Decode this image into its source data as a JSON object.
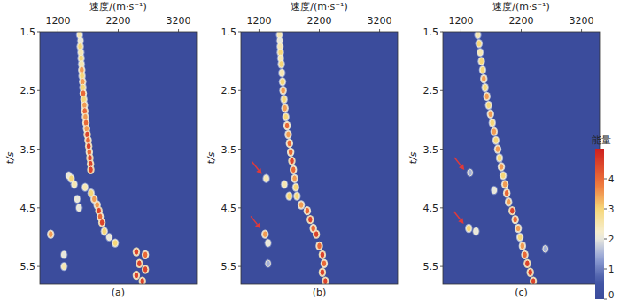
{
  "chart_data": [
    {
      "type": "heatmap",
      "x_label": "速度/(m·s⁻¹)",
      "y_label": "t/s",
      "panel_label": "(a)",
      "xlim": [
        900,
        3500
      ],
      "xticks": [
        1200,
        2200,
        3200
      ],
      "ylim": [
        1.5,
        5.8
      ],
      "yticks": [
        1.5,
        2.5,
        3.5,
        4.5,
        5.5
      ],
      "points": {
        "x": [
          1560,
          1575,
          1570,
          1580,
          1585,
          1590,
          1595,
          1600,
          1610,
          1615,
          1620,
          1630,
          1640,
          1645,
          1655,
          1665,
          1675,
          1685,
          1700,
          1710,
          1720,
          1730,
          1740,
          1745,
          1380,
          1420,
          1470,
          1650,
          1750,
          1800,
          1850,
          1880,
          1900,
          1930,
          1970,
          1550,
          1520,
          1080,
          2050,
          2150,
          2500,
          2650,
          2550,
          2650,
          2500,
          2600,
          1300,
          1300
        ],
        "y": [
          1.55,
          1.65,
          1.75,
          1.85,
          1.95,
          2.05,
          2.15,
          2.25,
          2.35,
          2.45,
          2.55,
          2.65,
          2.75,
          2.85,
          2.95,
          3.05,
          3.15,
          3.25,
          3.35,
          3.45,
          3.55,
          3.65,
          3.75,
          3.85,
          3.95,
          4.0,
          4.1,
          4.15,
          4.25,
          4.35,
          4.45,
          4.55,
          4.65,
          4.75,
          4.9,
          4.5,
          4.35,
          4.95,
          5.0,
          5.1,
          5.25,
          5.3,
          5.45,
          5.55,
          5.65,
          5.75,
          5.5,
          5.3
        ],
        "energy": [
          2.5,
          2,
          3,
          2.5,
          3,
          2.5,
          3.5,
          3,
          3.5,
          3,
          4,
          3,
          3.5,
          4,
          3.5,
          4,
          3.5,
          4.5,
          4,
          4.5,
          4,
          4.5,
          4.5,
          4.5,
          2,
          3,
          2.5,
          2.5,
          3,
          3.5,
          3.5,
          4.5,
          4,
          4.5,
          3,
          2,
          2,
          3.5,
          2,
          3,
          4.5,
          4,
          4.5,
          4.5,
          4.5,
          4.5,
          2.5,
          2
        ]
      }
    },
    {
      "type": "heatmap",
      "x_label": "速度/(m·s⁻¹)",
      "y_label": "t/s",
      "panel_label": "(b)",
      "xlim": [
        900,
        3500
      ],
      "xticks": [
        1200,
        2200,
        3200
      ],
      "ylim": [
        1.5,
        5.8
      ],
      "yticks": [
        1.5,
        2.5,
        3.5,
        4.5,
        5.5
      ],
      "points": {
        "x": [
          1540,
          1545,
          1550,
          1555,
          1560,
          1570,
          1580,
          1590,
          1600,
          1615,
          1630,
          1645,
          1665,
          1685,
          1705,
          1725,
          1745,
          1770,
          1790,
          1810,
          1830,
          1620,
          1700,
          1900,
          2000,
          2050,
          2100,
          2150,
          2200,
          2250,
          2280,
          2250,
          2300,
          1320,
          1300,
          1350,
          1350
        ],
        "y": [
          1.55,
          1.65,
          1.75,
          1.85,
          1.95,
          2.05,
          2.2,
          2.35,
          2.5,
          2.65,
          2.8,
          2.95,
          3.1,
          3.25,
          3.4,
          3.55,
          3.7,
          3.85,
          4.0,
          4.15,
          4.3,
          4.1,
          4.3,
          4.45,
          4.55,
          4.7,
          4.85,
          4.95,
          5.15,
          5.3,
          5.45,
          5.6,
          5.75,
          4.0,
          4.95,
          5.1,
          5.45
        ],
        "energy": [
          2.5,
          2,
          2.5,
          3,
          2.5,
          3,
          2.5,
          3,
          3.5,
          3,
          3.5,
          3,
          4,
          3.5,
          4,
          4,
          4.5,
          4,
          3.5,
          3,
          3,
          2.5,
          3,
          3.5,
          4,
          4.5,
          4,
          4.5,
          4,
          4.5,
          4,
          4.5,
          4.5,
          2.5,
          3.5,
          2,
          1.5
        ]
      },
      "arrows": [
        {
          "x": 1290,
          "y": 3.97
        },
        {
          "x": 1270,
          "y": 4.9
        }
      ]
    },
    {
      "type": "heatmap",
      "x_label": "速度/(m·s⁻¹)",
      "y_label": "t/s",
      "panel_label": "(c)",
      "xlim": [
        900,
        3500
      ],
      "xticks": [
        1200,
        2200,
        3200
      ],
      "ylim": [
        1.5,
        5.8
      ],
      "yticks": [
        1.5,
        2.5,
        3.5,
        4.5,
        5.5
      ],
      "points": {
        "x": [
          1480,
          1500,
          1520,
          1540,
          1560,
          1580,
          1600,
          1630,
          1660,
          1690,
          1720,
          1750,
          1780,
          1810,
          1840,
          1870,
          1900,
          1930,
          1960,
          1990,
          2050,
          2100,
          2150,
          2180,
          2220,
          2260,
          2300,
          2350,
          2400,
          1350,
          1330,
          1450,
          1750,
          2600
        ],
        "y": [
          1.55,
          1.7,
          1.85,
          2.0,
          2.15,
          2.3,
          2.45,
          2.6,
          2.75,
          2.9,
          3.05,
          3.2,
          3.35,
          3.5,
          3.65,
          3.8,
          3.95,
          4.1,
          4.25,
          4.4,
          4.55,
          4.7,
          4.85,
          5.0,
          5.15,
          5.3,
          5.45,
          5.6,
          5.75,
          3.9,
          4.85,
          4.9,
          4.2,
          5.2
        ],
        "energy": [
          2.5,
          3,
          2.5,
          3,
          3,
          3.5,
          3,
          3.5,
          3,
          3.5,
          3,
          3.5,
          3,
          3.5,
          3,
          3.5,
          3,
          3.5,
          4,
          3.5,
          4.5,
          4,
          3.5,
          3,
          3.5,
          4,
          4.5,
          4.5,
          4.5,
          1.5,
          3,
          2,
          2,
          1.5
        ]
      },
      "arrows": [
        {
          "x": 1300,
          "y": 3.9
        },
        {
          "x": 1290,
          "y": 4.82
        }
      ],
      "colorbar": {
        "label": "能量",
        "range": [
          0,
          5
        ],
        "ticks": [
          0,
          1,
          2,
          3,
          4
        ]
      }
    }
  ]
}
